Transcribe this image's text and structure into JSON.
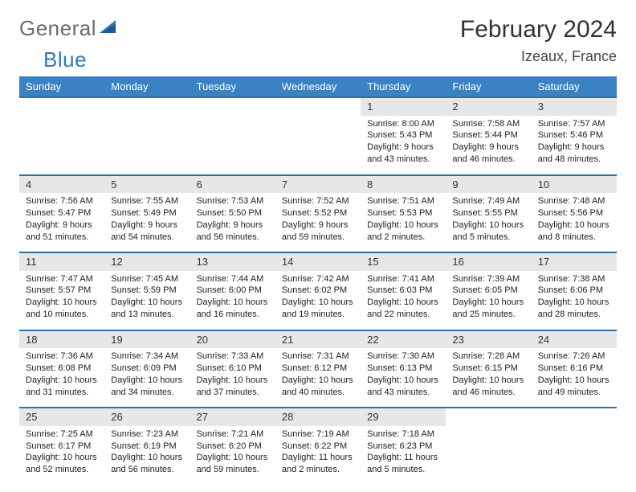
{
  "brand": {
    "text1": "General",
    "text2": "Blue"
  },
  "title": "February 2024",
  "location": "Izeaux, France",
  "colors": {
    "header_bg": "#3a82c4",
    "header_text": "#ffffff",
    "daynum_bg": "#e7e7e7",
    "rule": "#2f6fa8",
    "brand_gray": "#6b6b6b",
    "brand_blue": "#2f7abf"
  },
  "weekdays": [
    "Sunday",
    "Monday",
    "Tuesday",
    "Wednesday",
    "Thursday",
    "Friday",
    "Saturday"
  ],
  "weeks": [
    [
      null,
      null,
      null,
      null,
      {
        "n": "1",
        "sr": "Sunrise: 8:00 AM",
        "ss": "Sunset: 5:43 PM",
        "dl": "Daylight: 9 hours and 43 minutes."
      },
      {
        "n": "2",
        "sr": "Sunrise: 7:58 AM",
        "ss": "Sunset: 5:44 PM",
        "dl": "Daylight: 9 hours and 46 minutes."
      },
      {
        "n": "3",
        "sr": "Sunrise: 7:57 AM",
        "ss": "Sunset: 5:46 PM",
        "dl": "Daylight: 9 hours and 48 minutes."
      }
    ],
    [
      {
        "n": "4",
        "sr": "Sunrise: 7:56 AM",
        "ss": "Sunset: 5:47 PM",
        "dl": "Daylight: 9 hours and 51 minutes."
      },
      {
        "n": "5",
        "sr": "Sunrise: 7:55 AM",
        "ss": "Sunset: 5:49 PM",
        "dl": "Daylight: 9 hours and 54 minutes."
      },
      {
        "n": "6",
        "sr": "Sunrise: 7:53 AM",
        "ss": "Sunset: 5:50 PM",
        "dl": "Daylight: 9 hours and 56 minutes."
      },
      {
        "n": "7",
        "sr": "Sunrise: 7:52 AM",
        "ss": "Sunset: 5:52 PM",
        "dl": "Daylight: 9 hours and 59 minutes."
      },
      {
        "n": "8",
        "sr": "Sunrise: 7:51 AM",
        "ss": "Sunset: 5:53 PM",
        "dl": "Daylight: 10 hours and 2 minutes."
      },
      {
        "n": "9",
        "sr": "Sunrise: 7:49 AM",
        "ss": "Sunset: 5:55 PM",
        "dl": "Daylight: 10 hours and 5 minutes."
      },
      {
        "n": "10",
        "sr": "Sunrise: 7:48 AM",
        "ss": "Sunset: 5:56 PM",
        "dl": "Daylight: 10 hours and 8 minutes."
      }
    ],
    [
      {
        "n": "11",
        "sr": "Sunrise: 7:47 AM",
        "ss": "Sunset: 5:57 PM",
        "dl": "Daylight: 10 hours and 10 minutes."
      },
      {
        "n": "12",
        "sr": "Sunrise: 7:45 AM",
        "ss": "Sunset: 5:59 PM",
        "dl": "Daylight: 10 hours and 13 minutes."
      },
      {
        "n": "13",
        "sr": "Sunrise: 7:44 AM",
        "ss": "Sunset: 6:00 PM",
        "dl": "Daylight: 10 hours and 16 minutes."
      },
      {
        "n": "14",
        "sr": "Sunrise: 7:42 AM",
        "ss": "Sunset: 6:02 PM",
        "dl": "Daylight: 10 hours and 19 minutes."
      },
      {
        "n": "15",
        "sr": "Sunrise: 7:41 AM",
        "ss": "Sunset: 6:03 PM",
        "dl": "Daylight: 10 hours and 22 minutes."
      },
      {
        "n": "16",
        "sr": "Sunrise: 7:39 AM",
        "ss": "Sunset: 6:05 PM",
        "dl": "Daylight: 10 hours and 25 minutes."
      },
      {
        "n": "17",
        "sr": "Sunrise: 7:38 AM",
        "ss": "Sunset: 6:06 PM",
        "dl": "Daylight: 10 hours and 28 minutes."
      }
    ],
    [
      {
        "n": "18",
        "sr": "Sunrise: 7:36 AM",
        "ss": "Sunset: 6:08 PM",
        "dl": "Daylight: 10 hours and 31 minutes."
      },
      {
        "n": "19",
        "sr": "Sunrise: 7:34 AM",
        "ss": "Sunset: 6:09 PM",
        "dl": "Daylight: 10 hours and 34 minutes."
      },
      {
        "n": "20",
        "sr": "Sunrise: 7:33 AM",
        "ss": "Sunset: 6:10 PM",
        "dl": "Daylight: 10 hours and 37 minutes."
      },
      {
        "n": "21",
        "sr": "Sunrise: 7:31 AM",
        "ss": "Sunset: 6:12 PM",
        "dl": "Daylight: 10 hours and 40 minutes."
      },
      {
        "n": "22",
        "sr": "Sunrise: 7:30 AM",
        "ss": "Sunset: 6:13 PM",
        "dl": "Daylight: 10 hours and 43 minutes."
      },
      {
        "n": "23",
        "sr": "Sunrise: 7:28 AM",
        "ss": "Sunset: 6:15 PM",
        "dl": "Daylight: 10 hours and 46 minutes."
      },
      {
        "n": "24",
        "sr": "Sunrise: 7:26 AM",
        "ss": "Sunset: 6:16 PM",
        "dl": "Daylight: 10 hours and 49 minutes."
      }
    ],
    [
      {
        "n": "25",
        "sr": "Sunrise: 7:25 AM",
        "ss": "Sunset: 6:17 PM",
        "dl": "Daylight: 10 hours and 52 minutes."
      },
      {
        "n": "26",
        "sr": "Sunrise: 7:23 AM",
        "ss": "Sunset: 6:19 PM",
        "dl": "Daylight: 10 hours and 56 minutes."
      },
      {
        "n": "27",
        "sr": "Sunrise: 7:21 AM",
        "ss": "Sunset: 6:20 PM",
        "dl": "Daylight: 10 hours and 59 minutes."
      },
      {
        "n": "28",
        "sr": "Sunrise: 7:19 AM",
        "ss": "Sunset: 6:22 PM",
        "dl": "Daylight: 11 hours and 2 minutes."
      },
      {
        "n": "29",
        "sr": "Sunrise: 7:18 AM",
        "ss": "Sunset: 6:23 PM",
        "dl": "Daylight: 11 hours and 5 minutes."
      },
      null,
      null
    ]
  ]
}
